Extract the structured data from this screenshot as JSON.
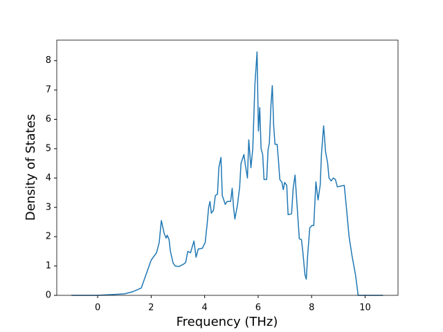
{
  "chart_data": {
    "type": "line",
    "xlabel": "Frequency (THz)",
    "ylabel": "Density of States",
    "xlim": [
      -1.53,
      11.23
    ],
    "ylim": [
      0,
      8.7
    ],
    "xticks": [
      0,
      2,
      4,
      6,
      8,
      10
    ],
    "yticks": [
      0,
      1,
      2,
      3,
      4,
      5,
      6,
      7,
      8
    ],
    "grid": false,
    "series": [
      {
        "color": "#1f77b4",
        "x": [
          -0.98,
          0,
          1.0,
          1.3,
          1.63,
          2.0,
          2.2,
          2.3,
          2.38,
          2.49,
          2.56,
          2.6,
          2.67,
          2.72,
          2.82,
          2.9,
          3.03,
          3.19,
          3.29,
          3.37,
          3.47,
          3.6,
          3.68,
          3.76,
          3.91,
          4.02,
          4.09,
          4.15,
          4.2,
          4.25,
          4.33,
          4.4,
          4.48,
          4.53,
          4.61,
          4.66,
          4.77,
          4.84,
          4.97,
          5.03,
          5.08,
          5.13,
          5.23,
          5.31,
          5.36,
          5.47,
          5.52,
          5.6,
          5.65,
          5.73,
          5.8,
          5.88,
          5.96,
          6.01,
          6.06,
          6.11,
          6.17,
          6.22,
          6.32,
          6.37,
          6.42,
          6.48,
          6.53,
          6.58,
          6.63,
          6.71,
          6.76,
          6.81,
          6.89,
          6.94,
          6.99,
          7.07,
          7.12,
          7.25,
          7.31,
          7.38,
          7.46,
          7.54,
          7.62,
          7.67,
          7.75,
          7.8,
          7.85,
          7.93,
          8.01,
          8.08,
          8.16,
          8.24,
          8.32,
          8.37,
          8.45,
          8.52,
          8.6,
          8.65,
          8.73,
          8.81,
          8.89,
          8.96,
          9.07,
          9.22,
          9.3,
          9.4,
          9.51,
          9.64,
          9.74,
          10.67
        ],
        "values": [
          0,
          0,
          0.05,
          0.12,
          0.25,
          1.2,
          1.45,
          1.8,
          2.55,
          2.1,
          1.95,
          2.05,
          1.9,
          1.5,
          1.1,
          1.0,
          0.98,
          1.05,
          1.12,
          1.5,
          1.45,
          1.85,
          1.3,
          1.58,
          1.6,
          1.8,
          2.4,
          3.0,
          3.2,
          2.8,
          2.9,
          3.4,
          3.45,
          4.35,
          4.7,
          3.4,
          3.1,
          3.2,
          3.2,
          3.65,
          3.0,
          2.6,
          3.1,
          3.7,
          4.5,
          4.8,
          4.45,
          4.0,
          5.3,
          4.35,
          5.0,
          7.2,
          8.3,
          5.6,
          6.4,
          5.0,
          4.8,
          3.95,
          3.95,
          4.95,
          5.2,
          6.5,
          7.15,
          5.8,
          5.15,
          5.15,
          4.6,
          3.95,
          3.85,
          3.6,
          3.85,
          3.75,
          2.75,
          2.78,
          3.65,
          4.1,
          3.0,
          1.93,
          1.9,
          1.5,
          0.7,
          0.55,
          1.35,
          2.3,
          2.38,
          2.38,
          3.87,
          3.25,
          3.75,
          4.85,
          5.78,
          4.9,
          4.5,
          4.0,
          3.9,
          4.0,
          3.95,
          3.7,
          3.72,
          3.75,
          3.0,
          2.0,
          1.35,
          0.7,
          0.0,
          0
        ]
      }
    ]
  }
}
